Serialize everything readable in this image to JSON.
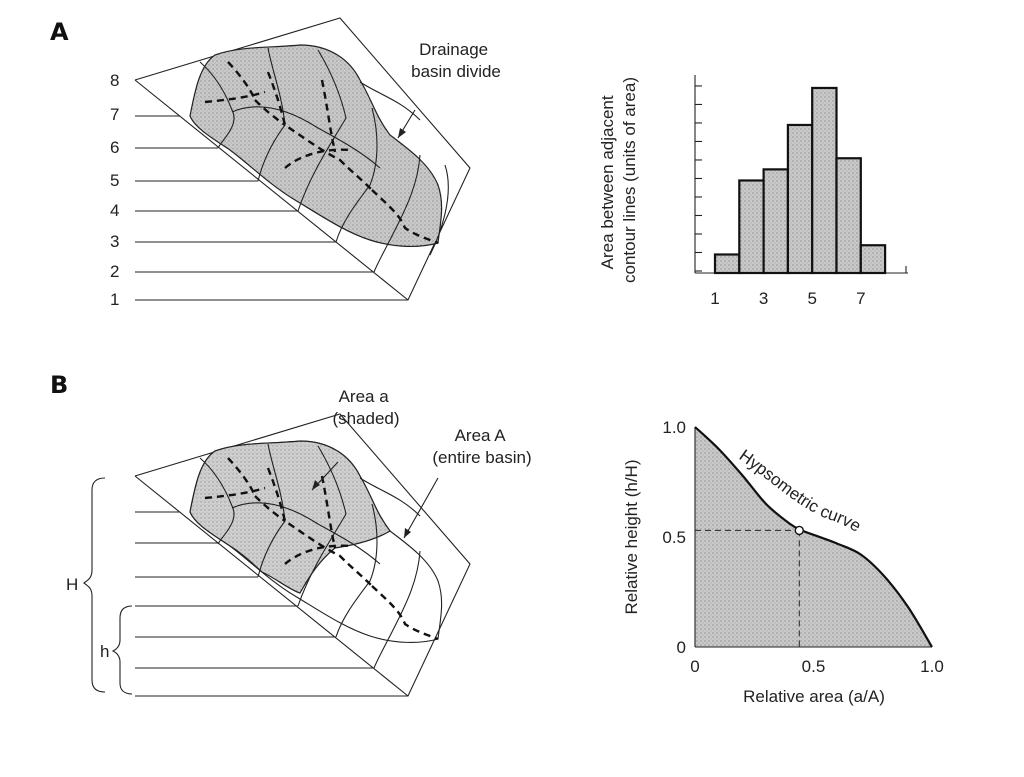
{
  "panel_a": {
    "letter": "A",
    "elevation_labels": [
      "8",
      "7",
      "6",
      "5",
      "4",
      "3",
      "2",
      "1"
    ],
    "annotation_divide": [
      "Drainage",
      "basin divide"
    ]
  },
  "panel_b": {
    "letter": "B",
    "annotation_area_a": [
      "Area a",
      "(shaded)"
    ],
    "annotation_area_A": [
      "Area A",
      "(entire basin)"
    ],
    "bracket_H": "H",
    "bracket_h": "h"
  },
  "chart_data": [
    {
      "type": "bar",
      "title": "",
      "xlabel": "",
      "ylabel": "Area between adjacent contour lines (units of area)",
      "ylabel_lines": [
        "Area between adjacent",
        "contour lines (units of area)"
      ],
      "categories": [
        "1",
        "2",
        "3",
        "4",
        "5",
        "6",
        "7"
      ],
      "values": [
        1,
        5,
        5.6,
        8,
        10,
        6.2,
        1.5
      ],
      "ylim": [
        0,
        10.7
      ],
      "x_ticks": [
        "1",
        "3",
        "5",
        "7"
      ],
      "grid": false
    },
    {
      "type": "line",
      "title": "",
      "curve_label": "Hypsometric curve",
      "xlabel": "Relative area (a/A)",
      "ylabel": "Relative height (h/H)",
      "x_ticks": [
        "0",
        "0.5",
        "1.0"
      ],
      "y_ticks": [
        "0",
        "0.5",
        "1.0"
      ],
      "xlim": [
        0,
        1
      ],
      "ylim": [
        0,
        1
      ],
      "series": [
        {
          "x": [
            0,
            0.1,
            0.2,
            0.3,
            0.4,
            0.45,
            0.5,
            0.6,
            0.7,
            0.8,
            0.9,
            1.0
          ],
          "y": [
            1.0,
            0.9,
            0.78,
            0.65,
            0.56,
            0.53,
            0.51,
            0.47,
            0.42,
            0.32,
            0.18,
            0.0
          ]
        }
      ],
      "marked_point": {
        "x": 0.44,
        "y": 0.53
      },
      "grid": false
    }
  ]
}
